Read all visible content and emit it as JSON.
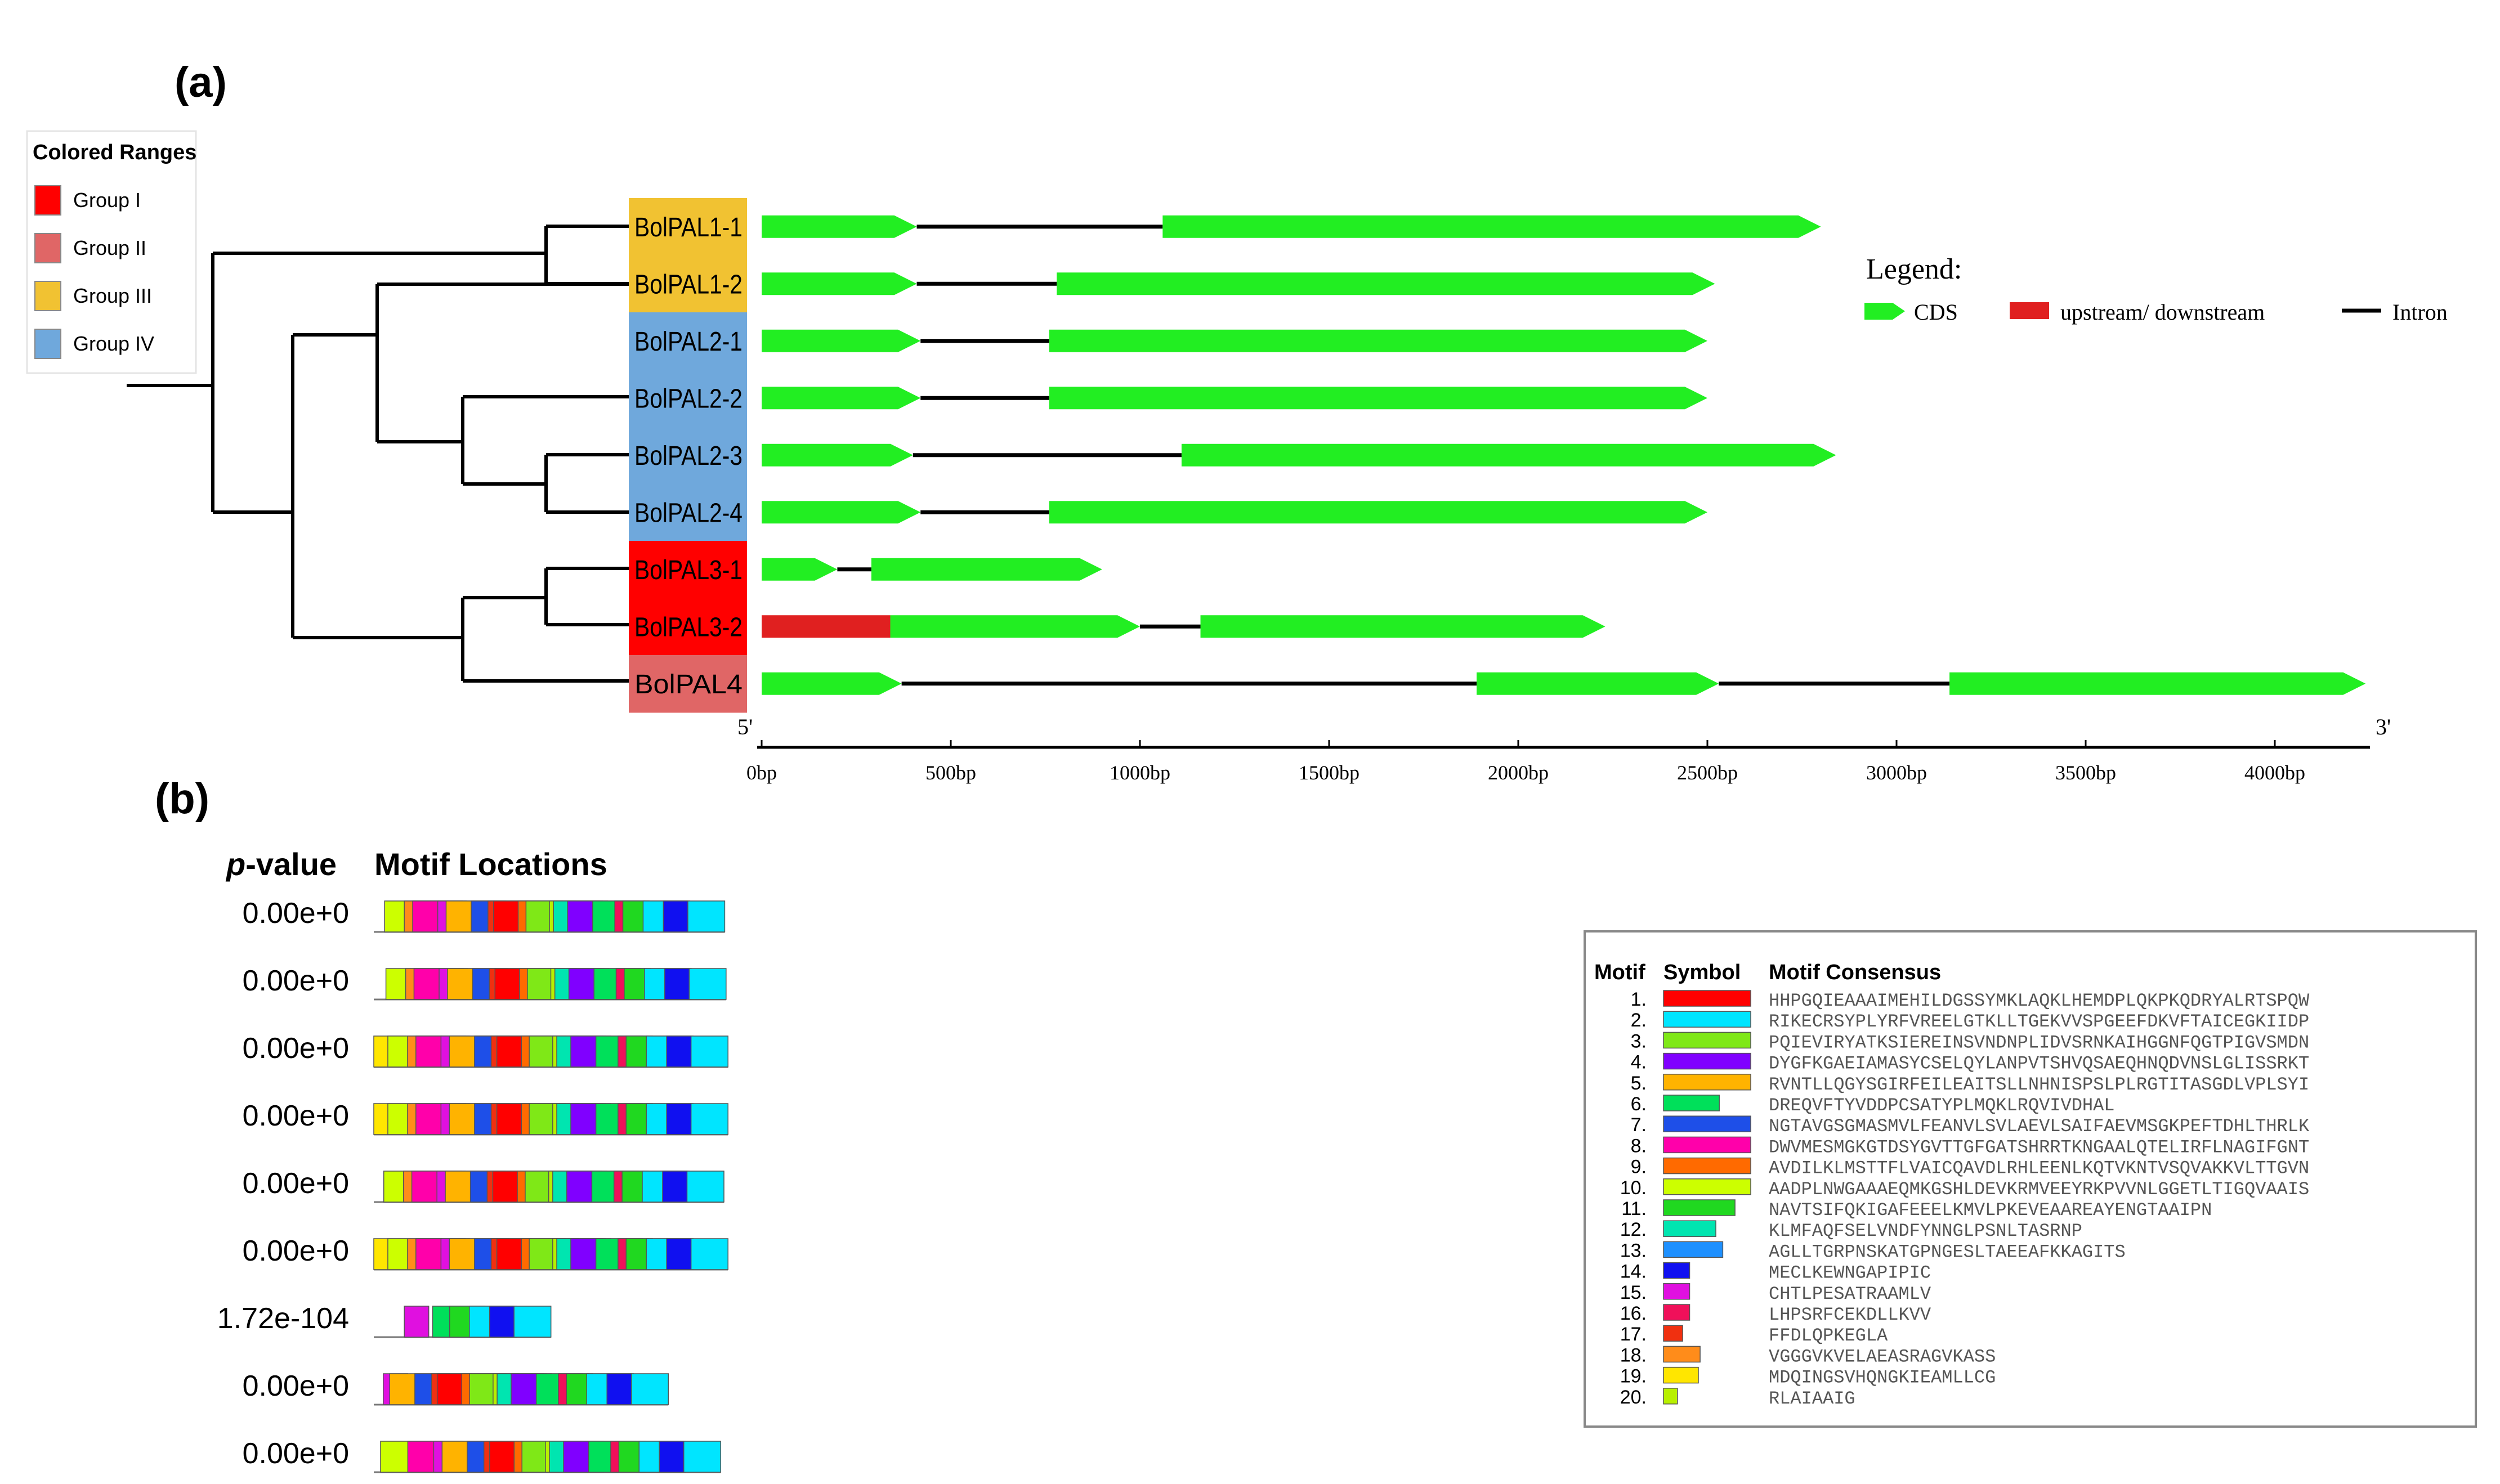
{
  "panel_a": {
    "label": "(a)",
    "colored_ranges": {
      "title": "Colored Ranges",
      "items": [
        {
          "name": "Group I",
          "color": "#FF0000"
        },
        {
          "name": "Group II",
          "color": "#E06666"
        },
        {
          "name": "Group III",
          "color": "#F1C232"
        },
        {
          "name": "Group IV",
          "color": "#6FA8DC"
        }
      ]
    },
    "genes": [
      {
        "name": "BolPAL1-1",
        "group": 2,
        "segments": [
          [
            "c",
            0,
            410
          ],
          [
            "i",
            410,
            1060
          ],
          [
            "c",
            1060,
            2800
          ]
        ]
      },
      {
        "name": "BolPAL1-2",
        "group": 2,
        "segments": [
          [
            "c",
            0,
            410
          ],
          [
            "i",
            410,
            780
          ],
          [
            "c",
            780,
            2520
          ]
        ]
      },
      {
        "name": "BolPAL2-1",
        "group": 3,
        "segments": [
          [
            "c",
            0,
            420
          ],
          [
            "i",
            420,
            760
          ],
          [
            "c",
            760,
            2500
          ]
        ]
      },
      {
        "name": "BolPAL2-2",
        "group": 3,
        "segments": [
          [
            "c",
            0,
            420
          ],
          [
            "i",
            420,
            760
          ],
          [
            "c",
            760,
            2500
          ]
        ]
      },
      {
        "name": "BolPAL2-3",
        "group": 3,
        "segments": [
          [
            "c",
            0,
            400
          ],
          [
            "i",
            400,
            1110
          ],
          [
            "c",
            1110,
            2840
          ]
        ]
      },
      {
        "name": "BolPAL2-4",
        "group": 3,
        "segments": [
          [
            "c",
            0,
            420
          ],
          [
            "i",
            420,
            760
          ],
          [
            "c",
            760,
            2500
          ]
        ]
      },
      {
        "name": "BolPAL3-1",
        "group": 0,
        "segments": [
          [
            "c",
            0,
            200
          ],
          [
            "i",
            200,
            290
          ],
          [
            "c",
            290,
            900
          ]
        ]
      },
      {
        "name": "BolPAL3-2",
        "group": 0,
        "segments": [
          [
            "u",
            0,
            340
          ],
          [
            "c",
            340,
            1000
          ],
          [
            "i",
            1000,
            1160
          ],
          [
            "c",
            1160,
            2230
          ]
        ]
      },
      {
        "name": "BolPAL4",
        "group": 1,
        "segments": [
          [
            "c",
            0,
            370
          ],
          [
            "i",
            370,
            1890
          ],
          [
            "c",
            1890,
            2530
          ],
          [
            "i",
            2530,
            3140
          ],
          [
            "c",
            3140,
            4240
          ]
        ]
      }
    ],
    "legend": {
      "title": "Legend:",
      "cds": "CDS",
      "upstream": "upstream/ downstream",
      "intron": "Intron"
    },
    "axis": {
      "start_label": "5'",
      "end_label": "3'",
      "ticks": [
        0,
        500,
        1000,
        1500,
        2000,
        2500,
        3000,
        3500,
        4000
      ],
      "tick_labels": [
        "0bp",
        "500bp",
        "1000bp",
        "1500bp",
        "2000bp",
        "2500bp",
        "3000bp",
        "3500bp",
        "4000bp"
      ],
      "max_bp": 4250
    },
    "colors": {
      "cds": "#22EE22",
      "upstream": "#E02020",
      "intron": "#000000"
    }
  },
  "panel_b": {
    "label": "(b)",
    "pvalue_header": "p",
    "pvalue_header_rest": "-value",
    "locations_header": "Motif Locations",
    "rows": [
      {
        "p": "0.00e+0",
        "motifs": [
          [
            10,
            0.04
          ],
          [
            18,
            0.113
          ],
          [
            8,
            0.144
          ],
          [
            15,
            0.237
          ],
          [
            5,
            0.268
          ],
          [
            7,
            0.361
          ],
          [
            17,
            0.423
          ],
          [
            1,
            0.444
          ],
          [
            9,
            0.535
          ],
          [
            3,
            0.564
          ],
          [
            20,
            0.651
          ],
          [
            12,
            0.666
          ],
          [
            4,
            0.718
          ],
          [
            6,
            0.811
          ],
          [
            16,
            0.893
          ],
          [
            11,
            0.923
          ],
          [
            2,
            0.998
          ],
          [
            14,
            1.073
          ]
        ]
      },
      {
        "p": "0.00e+0",
        "motifs": [
          [
            10,
            0.045
          ],
          [
            18,
            0.118
          ],
          [
            8,
            0.149
          ],
          [
            15,
            0.242
          ],
          [
            5,
            0.273
          ],
          [
            7,
            0.366
          ],
          [
            17,
            0.428
          ],
          [
            1,
            0.449
          ],
          [
            9,
            0.54
          ],
          [
            3,
            0.569
          ],
          [
            20,
            0.656
          ],
          [
            12,
            0.671
          ],
          [
            4,
            0.723
          ],
          [
            6,
            0.816
          ],
          [
            16,
            0.898
          ],
          [
            11,
            0.928
          ],
          [
            2,
            1.003
          ],
          [
            14,
            1.078
          ]
        ]
      },
      {
        "p": "0.00e+0",
        "motifs": [
          [
            19,
            0.0
          ],
          [
            10,
            0.052
          ],
          [
            18,
            0.125
          ],
          [
            8,
            0.156
          ],
          [
            15,
            0.249
          ],
          [
            5,
            0.28
          ],
          [
            7,
            0.373
          ],
          [
            17,
            0.435
          ],
          [
            1,
            0.456
          ],
          [
            9,
            0.547
          ],
          [
            3,
            0.576
          ],
          [
            20,
            0.663
          ],
          [
            12,
            0.678
          ],
          [
            4,
            0.73
          ],
          [
            6,
            0.823
          ],
          [
            16,
            0.905
          ],
          [
            11,
            0.935
          ],
          [
            2,
            1.01
          ],
          [
            14,
            1.085
          ]
        ]
      },
      {
        "p": "0.00e+0",
        "motifs": [
          [
            19,
            0.0
          ],
          [
            10,
            0.052
          ],
          [
            18,
            0.125
          ],
          [
            8,
            0.156
          ],
          [
            15,
            0.249
          ],
          [
            5,
            0.28
          ],
          [
            7,
            0.373
          ],
          [
            17,
            0.435
          ],
          [
            1,
            0.456
          ],
          [
            9,
            0.547
          ],
          [
            3,
            0.576
          ],
          [
            20,
            0.663
          ],
          [
            12,
            0.678
          ],
          [
            4,
            0.73
          ],
          [
            6,
            0.823
          ],
          [
            16,
            0.905
          ],
          [
            11,
            0.935
          ],
          [
            2,
            1.01
          ],
          [
            14,
            1.085
          ]
        ]
      },
      {
        "p": "0.00e+0",
        "motifs": [
          [
            10,
            0.037
          ],
          [
            18,
            0.11
          ],
          [
            8,
            0.141
          ],
          [
            15,
            0.234
          ],
          [
            5,
            0.265
          ],
          [
            7,
            0.358
          ],
          [
            17,
            0.42
          ],
          [
            1,
            0.441
          ],
          [
            9,
            0.532
          ],
          [
            3,
            0.561
          ],
          [
            20,
            0.648
          ],
          [
            12,
            0.663
          ],
          [
            4,
            0.715
          ],
          [
            6,
            0.808
          ],
          [
            16,
            0.89
          ],
          [
            11,
            0.92
          ],
          [
            2,
            0.995
          ],
          [
            14,
            1.07
          ]
        ]
      },
      {
        "p": "0.00e+0",
        "motifs": [
          [
            19,
            0.0
          ],
          [
            10,
            0.052
          ],
          [
            18,
            0.125
          ],
          [
            8,
            0.156
          ],
          [
            15,
            0.249
          ],
          [
            5,
            0.28
          ],
          [
            7,
            0.373
          ],
          [
            17,
            0.435
          ],
          [
            1,
            0.456
          ],
          [
            9,
            0.547
          ],
          [
            3,
            0.576
          ],
          [
            20,
            0.663
          ],
          [
            12,
            0.678
          ],
          [
            4,
            0.73
          ],
          [
            6,
            0.823
          ],
          [
            16,
            0.905
          ],
          [
            11,
            0.935
          ],
          [
            2,
            1.01
          ],
          [
            14,
            1.085
          ]
        ]
      },
      {
        "p": "1.72e-104",
        "motifs": [
          [
            15,
            0.113
          ],
          [
            6,
            0.218
          ],
          [
            11,
            0.281
          ],
          [
            2,
            0.354
          ],
          [
            14,
            0.429
          ]
        ]
      },
      {
        "p": "0.00e+0",
        "motifs": [
          [
            15,
            0.035
          ],
          [
            5,
            0.059
          ],
          [
            7,
            0.152
          ],
          [
            17,
            0.214
          ],
          [
            1,
            0.235
          ],
          [
            9,
            0.326
          ],
          [
            3,
            0.355
          ],
          [
            20,
            0.442
          ],
          [
            12,
            0.457
          ],
          [
            4,
            0.509
          ],
          [
            6,
            0.602
          ],
          [
            16,
            0.684
          ],
          [
            11,
            0.714
          ],
          [
            2,
            0.789
          ],
          [
            14,
            0.864
          ]
        ]
      },
      {
        "p": "0.00e+0",
        "motifs": [
          [
            10,
            0.025
          ],
          [
            8,
            0.126
          ],
          [
            15,
            0.222
          ],
          [
            5,
            0.253
          ],
          [
            7,
            0.346
          ],
          [
            17,
            0.408
          ],
          [
            1,
            0.429
          ],
          [
            9,
            0.52
          ],
          [
            3,
            0.549
          ],
          [
            20,
            0.636
          ],
          [
            12,
            0.651
          ],
          [
            4,
            0.703
          ],
          [
            6,
            0.796
          ],
          [
            16,
            0.878
          ],
          [
            11,
            0.908
          ],
          [
            2,
            0.983
          ],
          [
            14,
            1.058
          ]
        ]
      }
    ],
    "motif_table": {
      "headers": [
        "Motif",
        "Symbol",
        "Motif Consensus"
      ],
      "motifs": [
        {
          "num": "1.",
          "color": "#FF0000",
          "rel": 1.0,
          "seq": "HHPGQIEAAAIMEHILDGSSYMKLAQKLHEMDPLQKPKQDRYALRTSPQW"
        },
        {
          "num": "2.",
          "color": "#00E5FF",
          "rel": 1.0,
          "seq": "RIKECRSYPLYRFVREELGTKLLTGEKVVSPGEEFDKVFTAICEGKIIDP"
        },
        {
          "num": "3.",
          "color": "#7FE817",
          "rel": 1.0,
          "seq": "PQIEVIRYATKSIEREINSVNDNPLIDVSRNKAIHGGNFQGTPIGVSMDN"
        },
        {
          "num": "4.",
          "color": "#8000FF",
          "rel": 1.0,
          "seq": "DYGFKGAEIAMASYCSELQYLANPVTSHVQSAEQHNQDVNSLGLISSRKT"
        },
        {
          "num": "5.",
          "color": "#FFB300",
          "rel": 1.0,
          "seq": "RVNTLLQGYSGIRFEILEAITSLLNHNISPSLPLRGTITASGDLVPLSYI"
        },
        {
          "num": "6.",
          "color": "#00E05A",
          "rel": 0.64,
          "seq": "DREQVFTYVDDPCSATYPLMQKLRQVIVDHAL"
        },
        {
          "num": "7.",
          "color": "#1E4FE8",
          "rel": 1.0,
          "seq": "NGTAVGSGMASMVLFEANVLSVLAEVLSAIFAEVMSGKPEFTDHLTHRLK"
        },
        {
          "num": "8.",
          "color": "#FF00AA",
          "rel": 1.0,
          "seq": "DWVMESMGKGTDSYGVTTGFGATSHRRTKNGAALQTELIRFLNAGIFGNT"
        },
        {
          "num": "9.",
          "color": "#FF6A00",
          "rel": 1.0,
          "seq": "AVDILKLMSTTFLVAICQAVDLRHLEENLKQTVKNTVSQVAKKVLTTGVN"
        },
        {
          "num": "10.",
          "color": "#CCFF00",
          "rel": 1.0,
          "seq": "AADPLNWGAAAEQMKGSHLDEVKRMVEEYRKPVVNLGGETLTIGQVAAIS"
        },
        {
          "num": "11.",
          "color": "#20D820",
          "rel": 0.82,
          "seq": "NAVTSIFQKIGAFEEELKMVLPKEVEAAREAYENGTAAIPN"
        },
        {
          "num": "12.",
          "color": "#00E5B0",
          "rel": 0.6,
          "seq": "KLMFAQFSELVNDFYNNGLPSNLTASRNP"
        },
        {
          "num": "13.",
          "color": "#1E90FF",
          "rel": 0.68,
          "seq": "AGLLTGRPNSKATGPNGESLTAEEAFKKAGITS"
        },
        {
          "num": "14.",
          "color": "#1010F0",
          "rel": 0.3,
          "seq": "MECLKEWNGAPIPIC"
        },
        {
          "num": "15.",
          "color": "#E010E0",
          "rel": 0.3,
          "seq": "CHTLPESATRAAMLV"
        },
        {
          "num": "16.",
          "color": "#F0105A",
          "rel": 0.3,
          "seq": "LHPSRFCEKDLLKVV"
        },
        {
          "num": "17.",
          "color": "#F03010",
          "rel": 0.22,
          "seq": "FFDLQPKEGLA"
        },
        {
          "num": "18.",
          "color": "#FF8C1A",
          "rel": 0.42,
          "seq": "VGGGVKVELAEASRAGVKASS"
        },
        {
          "num": "19.",
          "color": "#FFE600",
          "rel": 0.4,
          "seq": "MDQINGSVHQNGKIEAMLLCG"
        },
        {
          "num": "20.",
          "color": "#B8F000",
          "rel": 0.16,
          "seq": "RLAIAAIG"
        }
      ]
    }
  }
}
